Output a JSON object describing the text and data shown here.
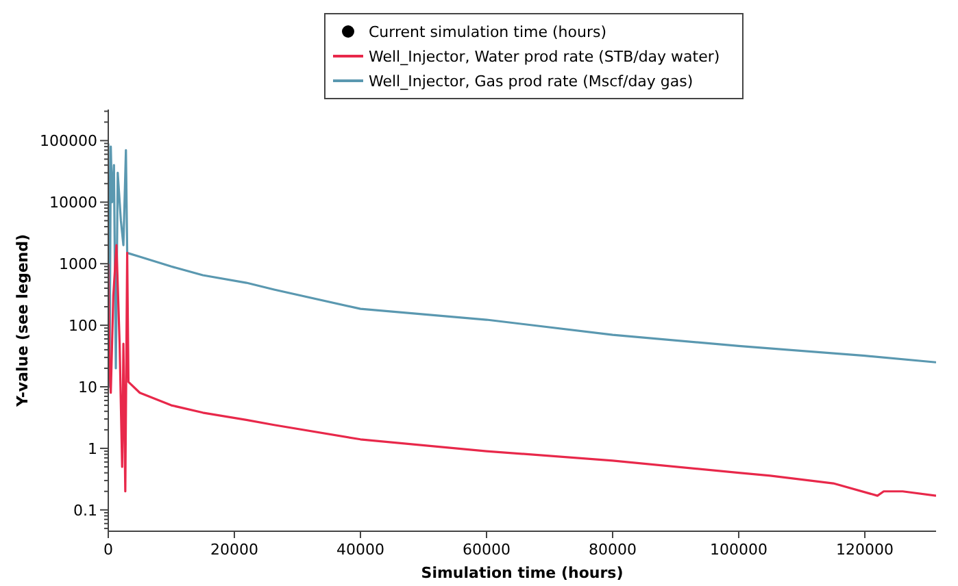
{
  "chart_data": {
    "type": "line",
    "xlabel": "Simulation time (hours)",
    "ylabel": "Y-value (see legend)",
    "log": "y",
    "legend": "top",
    "grid": false,
    "xlim": [
      0,
      131300
    ],
    "xticks": [
      0,
      20000,
      40000,
      60000,
      80000,
      100000,
      120000
    ],
    "ylim": [
      0.045,
      320000
    ],
    "yticks": [
      0.1,
      1,
      10,
      100,
      1000,
      10000,
      100000
    ],
    "series": [
      {
        "name": "Current simulation time (hours)",
        "type": "scatter",
        "marker": "circle",
        "color": "#000000"
      },
      {
        "name": "Well_Injector, Water prod rate (STB/day water)",
        "color": "#e8284a",
        "x": [
          0,
          200,
          400,
          800,
          1300,
          1800,
          2200,
          2400,
          2700,
          3000,
          3200,
          5000,
          10000,
          15000,
          21900,
          26300,
          40000,
          60000,
          80000,
          100000,
          105000,
          115000,
          122000,
          123000,
          126000,
          131300
        ],
        "values": [
          1000,
          20,
          8,
          300,
          2000,
          50,
          0.5,
          50,
          0.2,
          1500,
          12,
          8,
          5,
          3.8,
          2.9,
          2.4,
          1.4,
          0.9,
          0.63,
          0.4,
          0.36,
          0.27,
          0.17,
          0.2,
          0.2,
          0.17
        ]
      },
      {
        "name": "Well_Injector, Gas prod rate (Mscf/day gas)",
        "color": "#5a98b0",
        "x": [
          0,
          200,
          400,
          600,
          900,
          1200,
          1500,
          2000,
          2400,
          2800,
          3000,
          5000,
          10000,
          15000,
          21900,
          26300,
          40000,
          60000,
          80000,
          100000,
          120000,
          131300
        ],
        "values": [
          90000,
          10,
          80000,
          10000,
          40000,
          20,
          30000,
          5000,
          2000,
          70000,
          1500,
          1300,
          900,
          650,
          490,
          380,
          185,
          123,
          70,
          46,
          32,
          25
        ]
      }
    ]
  }
}
